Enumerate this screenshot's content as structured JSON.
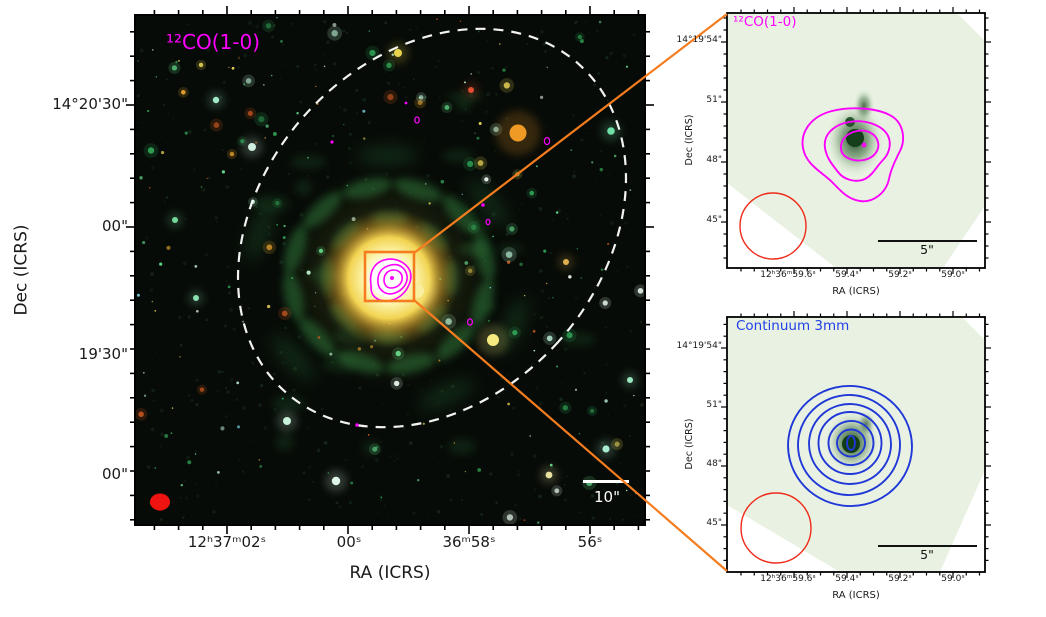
{
  "figure": {
    "background": "#ffffff"
  },
  "main_panel": {
    "label": "¹²CO(1-0)",
    "xlabel": "RA (ICRS)",
    "ylabel": "Dec (ICRS)",
    "x_tick_labels": [
      "12ʰ37ᵐ02ˢ",
      "00ˢ",
      "36ᵐ58ˢ",
      "56ˢ"
    ],
    "y_tick_labels": [
      "14°20'30\"",
      "00\"",
      "19'30\"",
      "00\""
    ],
    "scalebar_label": "10\"",
    "colors": {
      "label": "#ff00ff",
      "contour": "#ff00ff",
      "zoom_box": "#f57d1f",
      "connector": "#f57d1f",
      "beam": "#f01410",
      "fov_dashed": "#ffffff",
      "scalebar": "#ffffff"
    }
  },
  "co_zoom_panel": {
    "label": "¹²CO(1-0)",
    "xlabel": "RA (ICRS)",
    "ylabel": "Dec (ICRS)",
    "x_tick_labels": [
      "12ʰ36ᵐ59.6ˢ",
      "59.4ˢ",
      "59.2ˢ",
      "59.0ˢ"
    ],
    "y_tick_labels": [
      "14°19'54\"",
      "51\"",
      "48\"",
      "45\""
    ],
    "scalebar_label": "5\"",
    "colors": {
      "label": "#ff00ff",
      "contour": "#ff00ff",
      "beam": "#ee2a1a",
      "field_bg": "#e9f2e2",
      "scalebar": "#111111"
    }
  },
  "continuum_panel": {
    "label": "Continuum 3mm",
    "xlabel": "RA (ICRS)",
    "ylabel": "Dec (ICRS)",
    "x_tick_labels": [
      "12ʰ36ᵐ59.6ˢ",
      "59.4ˢ",
      "59.2ˢ",
      "59.0ˢ"
    ],
    "y_tick_labels": [
      "14°19'54\"",
      "51\"",
      "48\"",
      "45\""
    ],
    "scalebar_label": "5\"",
    "colors": {
      "label": "#2240e8",
      "contour": "#2038d8",
      "beam": "#ee2a1a",
      "field_bg": "#e9f2e2",
      "scalebar": "#111111"
    }
  },
  "chart_data": [
    {
      "type": "heatmap",
      "title": "¹²CO(1-0) contours over optical RGB image of a spiral galaxy",
      "xlabel": "RA (ICRS)",
      "ylabel": "Dec (ICRS)",
      "x_tick_labels": [
        "12ʰ37ᵐ02ˢ",
        "00ˢ",
        "36ᵐ58ˢ",
        "56ˢ"
      ],
      "y_tick_labels": [
        "14°20'30\"",
        "00\"",
        "19'30\"",
        "00\""
      ],
      "x_range": [
        "12ʰ37ᵐ03.5ˢ",
        "12ʰ36ᵐ55.1ˢ"
      ],
      "y_range": [
        "14°18'48\"",
        "14°20'52\""
      ],
      "grid": false,
      "annotations": [
        "¹²CO(1-0) label (magenta)",
        "white dashed ellipse = primary-beam / field of view",
        "orange square = zoom region around galaxy nucleus",
        "magenta nested contours at nucleus plus small scattered contour specks",
        "red filled ellipse = synthesized beam (bottom left)",
        "white scale bar = 10 arcsec (bottom right)"
      ]
    },
    {
      "type": "heatmap",
      "title": "¹²CO(1-0) integrated intensity zoom on nucleus",
      "xlabel": "RA (ICRS)",
      "ylabel": "Dec (ICRS)",
      "x_tick_labels": [
        "12ʰ36ᵐ59.6ˢ",
        "59.4ˢ",
        "59.2ˢ",
        "59.0ˢ"
      ],
      "y_tick_labels": [
        "14°19'54\"",
        "51\"",
        "48\"",
        "45\""
      ],
      "x_range": [
        "12ʰ36ᵐ59.85ˢ",
        "12ʰ36ᵐ58.88ˢ"
      ],
      "y_range": [
        "14°19'42.6\"",
        "14°19'55.6\""
      ],
      "grid": false,
      "annotations": [
        "3 nested magenta contours centered ~12ʰ36ᵐ59.35ˢ +14°19'49\"",
        "magenta dot = contour peak marker",
        "dark green blob = line emission map on light-green field",
        "red open circle = beam (bottom left)",
        "black scale bar = 5 arcsec"
      ]
    },
    {
      "type": "heatmap",
      "title": "3 mm continuum zoom on nucleus",
      "xlabel": "RA (ICRS)",
      "ylabel": "Dec (ICRS)",
      "x_tick_labels": [
        "12ʰ36ᵐ59.6ˢ",
        "59.4ˢ",
        "59.2ˢ",
        "59.0ˢ"
      ],
      "y_tick_labels": [
        "14°19'54\"",
        "51\"",
        "48\"",
        "45\""
      ],
      "x_range": [
        "12ʰ36ᵐ59.85ˢ",
        "12ʰ36ᵐ58.88ˢ"
      ],
      "y_range": [
        "14°19'42.6\"",
        "14°19'55.6\""
      ],
      "grid": false,
      "annotations": [
        "6 nested blue contours (roughly concentric) centered ~12ʰ36ᵐ59.35ˢ +14°19'49\"",
        "dark green blob = continuum peak on light-green field",
        "red open circle = beam (bottom left)",
        "black scale bar = 5 arcsec"
      ]
    }
  ]
}
